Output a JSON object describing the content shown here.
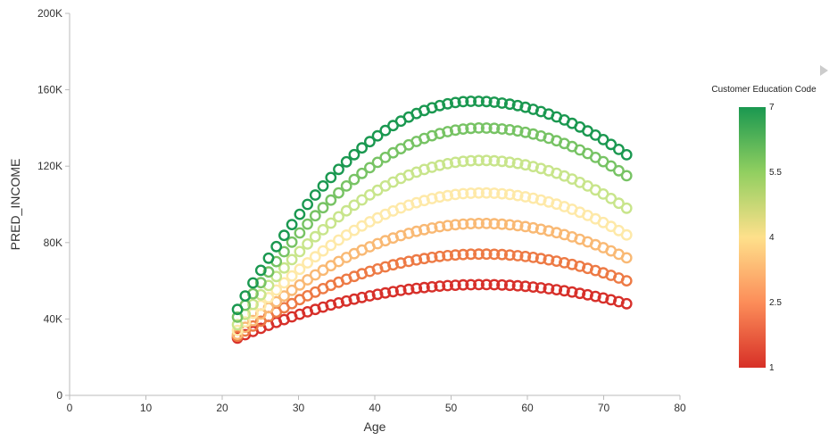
{
  "chart_data": {
    "type": "scatter",
    "title": "",
    "xlabel": "Age",
    "ylabel": "PRED_INCOME",
    "xlim": [
      0,
      80
    ],
    "ylim": [
      0,
      200000
    ],
    "x_ticks": [
      "0",
      "10",
      "20",
      "30",
      "40",
      "50",
      "60",
      "70",
      "80"
    ],
    "y_ticks": [
      "0",
      "40K",
      "80K",
      "120K",
      "160K",
      "200K"
    ],
    "grid": false,
    "x_range": [
      22,
      73
    ],
    "series": [
      {
        "code": 1,
        "color": "#d7302a",
        "start_value": 30000,
        "peak_age": 54,
        "peak_value": 58000,
        "end_value": 48000
      },
      {
        "code": 2,
        "color": "#ed7a45",
        "start_value": 31000,
        "peak_age": 54,
        "peak_value": 74000,
        "end_value": 60000
      },
      {
        "code": 3,
        "color": "#f9b974",
        "start_value": 32000,
        "peak_age": 54,
        "peak_value": 90000,
        "end_value": 72000
      },
      {
        "code": 4,
        "color": "#fee9a8",
        "start_value": 34000,
        "peak_age": 54,
        "peak_value": 106000,
        "end_value": 84000
      },
      {
        "code": 5,
        "color": "#c8e58b",
        "start_value": 37000,
        "peak_age": 54,
        "peak_value": 123000,
        "end_value": 98000
      },
      {
        "code": 6,
        "color": "#77c364",
        "start_value": 41000,
        "peak_age": 54,
        "peak_value": 140000,
        "end_value": 115000
      },
      {
        "code": 7,
        "color": "#1a9850",
        "start_value": 45000,
        "peak_age": 53,
        "peak_value": 154000,
        "end_value": 126000
      }
    ],
    "legend": {
      "title": "Customer Education Code",
      "ticks": [
        "7",
        "5.5",
        "4",
        "2.5",
        "1"
      ],
      "placement": "right",
      "gradient_colors": [
        "#1a9850",
        "#91cf60",
        "#fee08b",
        "#fc8d59",
        "#d73027"
      ]
    }
  }
}
